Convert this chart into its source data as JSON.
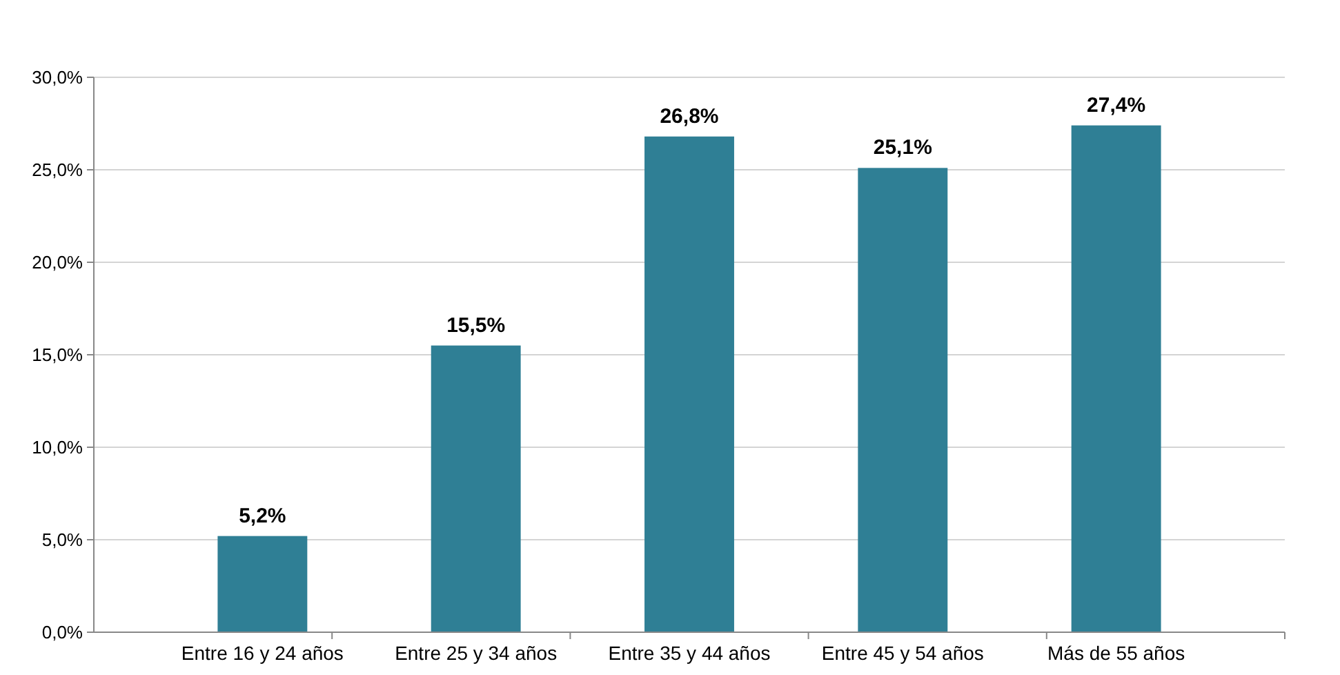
{
  "chart_data": {
    "type": "bar",
    "categories": [
      "Entre 16 y 24 años",
      "Entre 25 y 34 años",
      "Entre 35 y 44 años",
      "Entre 45 y 54 años",
      "Más de 55 años"
    ],
    "values": [
      5.2,
      15.5,
      26.8,
      25.1,
      27.4
    ],
    "value_labels": [
      "5,2%",
      "15,5%",
      "26,8%",
      "25,1%",
      "27,4%"
    ],
    "color": "#2f7f95",
    "ylim": [
      0,
      30
    ],
    "yticks": [
      {
        "value": 0,
        "label": "0,0%"
      },
      {
        "value": 5,
        "label": "5,0%"
      },
      {
        "value": 10,
        "label": "10,0%"
      },
      {
        "value": 15,
        "label": "15,0%"
      },
      {
        "value": 20,
        "label": "20,0%"
      },
      {
        "value": 25,
        "label": "25,0%"
      },
      {
        "value": 30,
        "label": "30,0%"
      }
    ],
    "grid": "y"
  }
}
